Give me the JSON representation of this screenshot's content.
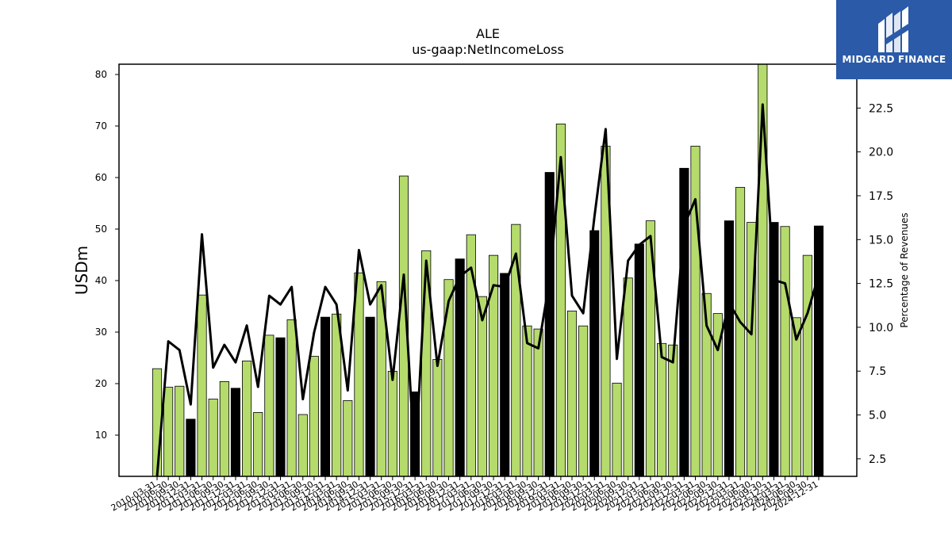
{
  "chart_data": {
    "type": "bar",
    "title": "ALE",
    "subtitle": "us-gaap:NetIncomeLoss",
    "ylabel": "USDm",
    "y2label": "Percentage of Revenues",
    "ylim": [
      2,
      82
    ],
    "y2lim": [
      1.5,
      25.0
    ],
    "yticks": [
      10,
      20,
      30,
      40,
      50,
      60,
      70,
      80
    ],
    "y2ticks": [
      2.5,
      5.0,
      7.5,
      10.0,
      12.5,
      15.0,
      17.5,
      20.0,
      22.5
    ],
    "categories": [
      "2010-03-31",
      "2010-06-30",
      "2010-09-30",
      "2010-12-31",
      "2011-03-31",
      "2011-06-30",
      "2011-09-30",
      "2011-12-31",
      "2012-03-31",
      "2012-06-30",
      "2012-09-30",
      "2012-12-31",
      "2013-03-31",
      "2013-06-30",
      "2013-09-30",
      "2013-12-31",
      "2014-03-31",
      "2014-06-30",
      "2014-09-30",
      "2014-12-31",
      "2015-03-31",
      "2015-06-30",
      "2015-09-30",
      "2015-12-31",
      "2016-03-31",
      "2016-06-30",
      "2016-09-30",
      "2016-12-31",
      "2017-03-31",
      "2017-06-30",
      "2017-09-30",
      "2017-12-31",
      "2018-03-31",
      "2018-06-30",
      "2018-09-30",
      "2018-12-31",
      "2019-03-31",
      "2019-06-30",
      "2019-09-30",
      "2019-12-31",
      "2020-03-31",
      "2020-06-30",
      "2020-09-30",
      "2020-12-31",
      "2021-03-31",
      "2021-06-30",
      "2021-09-30",
      "2021-12-31",
      "2022-03-31",
      "2022-06-30",
      "2022-09-30",
      "2022-12-31",
      "2023-03-31",
      "2023-06-30",
      "2023-09-30",
      "2023-12-31",
      "2024-03-31",
      "2024-06-30",
      "2024-09-30",
      "2024-12-31"
    ],
    "series": [
      {
        "values": [
          22.9,
          19.3,
          19.5,
          13.1,
          37.2,
          17.0,
          20.4,
          19.1,
          24.4,
          14.4,
          29.4,
          28.9,
          32.4,
          14.0,
          25.3,
          32.9,
          33.5,
          16.7,
          41.5,
          32.9,
          39.8,
          22.4,
          60.3,
          18.4,
          45.8,
          24.7,
          40.2,
          44.2,
          48.9,
          36.9,
          44.9,
          41.4,
          50.9,
          31.2,
          30.6,
          61.0,
          70.4,
          34.1,
          31.2,
          49.7,
          66.1,
          20.1,
          40.5,
          47.1,
          51.6,
          27.8,
          27.5,
          61.8,
          66.1,
          37.5,
          33.6,
          51.6,
          58.1,
          51.3,
          82.0,
          51.3,
          50.5,
          32.8,
          44.9,
          50.6
        ],
        "colors": [
          "#b5db6c",
          "#b5db6c",
          "#b5db6c",
          "#000000",
          "#b5db6c",
          "#b5db6c",
          "#b5db6c",
          "#000000",
          "#b5db6c",
          "#b5db6c",
          "#b5db6c",
          "#000000",
          "#b5db6c",
          "#b5db6c",
          "#b5db6c",
          "#000000",
          "#b5db6c",
          "#b5db6c",
          "#b5db6c",
          "#000000",
          "#b5db6c",
          "#b5db6c",
          "#b5db6c",
          "#000000",
          "#b5db6c",
          "#b5db6c",
          "#b5db6c",
          "#000000",
          "#b5db6c",
          "#b5db6c",
          "#b5db6c",
          "#000000",
          "#b5db6c",
          "#b5db6c",
          "#b5db6c",
          "#000000",
          "#b5db6c",
          "#b5db6c",
          "#b5db6c",
          "#000000",
          "#b5db6c",
          "#b5db6c",
          "#b5db6c",
          "#000000",
          "#b5db6c",
          "#b5db6c",
          "#b5db6c",
          "#000000",
          "#b5db6c",
          "#b5db6c",
          "#b5db6c",
          "#000000",
          "#b5db6c",
          "#b5db6c",
          "#b5db6c",
          "#000000",
          "#b5db6c",
          "#b5db6c",
          "#b5db6c",
          "#000000"
        ]
      },
      {
        "axis": "right",
        "type": "line",
        "color": "#000000",
        "values": [
          1.2,
          9.2,
          8.7,
          5.6,
          15.3,
          7.7,
          9.0,
          8.0,
          10.1,
          6.6,
          11.8,
          11.3,
          12.3,
          5.9,
          9.7,
          12.3,
          11.3,
          6.4,
          14.4,
          11.3,
          12.4,
          7.0,
          13.0,
          2.0,
          13.8,
          7.8,
          11.5,
          12.9,
          13.4,
          10.4,
          12.4,
          12.3,
          14.2,
          9.1,
          8.8,
          12.7,
          19.7,
          11.8,
          10.8,
          16.3,
          21.3,
          8.2,
          13.8,
          14.7,
          15.2,
          8.3,
          8.0,
          15.8,
          17.3,
          10.1,
          8.7,
          11.4,
          10.3,
          9.6,
          22.7,
          12.7,
          12.5,
          9.3,
          10.8,
          13.0
        ]
      }
    ]
  },
  "logo": {
    "text": "MIDGARD FINANCE",
    "color": "#2a5aa8"
  }
}
